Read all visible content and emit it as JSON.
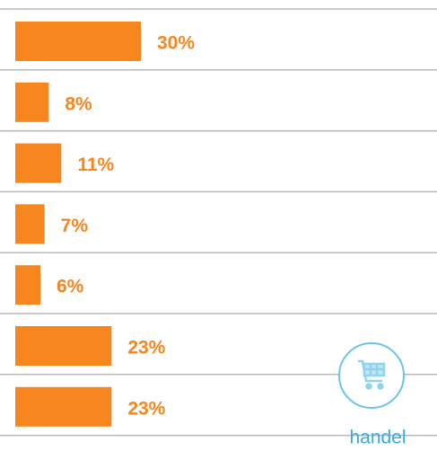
{
  "chart_data": {
    "type": "bar",
    "orientation": "horizontal",
    "color": "#f7861f",
    "values": [
      30,
      8,
      11,
      7,
      6,
      23,
      23
    ],
    "value_labels": [
      "30%",
      "8%",
      "11%",
      "7%",
      "6%",
      "23%",
      "23%"
    ]
  },
  "badge": {
    "label": "handel"
  }
}
